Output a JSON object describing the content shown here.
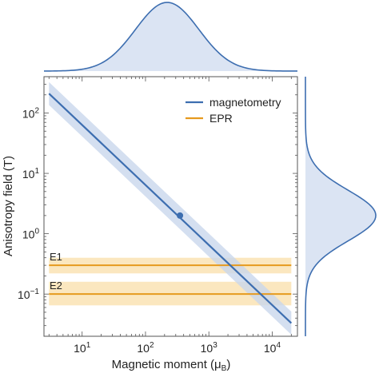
{
  "chart_data": {
    "type": "line",
    "xlabel": "Magnetic moment (μ",
    "xlabel_sub": "B",
    "xlabel_close": ")",
    "ylabel": "Anisotropy field (T)",
    "x_scale": "log",
    "y_scale": "log",
    "xlim": [
      2.5,
      25000
    ],
    "ylim": [
      0.02,
      400
    ],
    "x_ticks": [
      {
        "value": 10,
        "base": "10",
        "exp": "1"
      },
      {
        "value": 100,
        "base": "10",
        "exp": "2"
      },
      {
        "value": 1000,
        "base": "10",
        "exp": "3"
      },
      {
        "value": 10000,
        "base": "10",
        "exp": "4"
      }
    ],
    "y_ticks": [
      {
        "value": 0.1,
        "base": "10",
        "exp": "−1"
      },
      {
        "value": 1,
        "base": "10",
        "exp": "0"
      },
      {
        "value": 10,
        "base": "10",
        "exp": "1"
      },
      {
        "value": 100,
        "base": "10",
        "exp": "2"
      }
    ],
    "grid": false,
    "legend_position": "top-right",
    "series": [
      {
        "name": "magnetometry",
        "color": "#3d6eb0",
        "band_color": "#c9d7ec",
        "x": [
          3,
          20000
        ],
        "y": [
          210,
          0.033
        ],
        "band_factor": 1.55,
        "point": {
          "x": 350,
          "y": 2.0
        }
      },
      {
        "name": "EPR",
        "color": "#e69a1e",
        "band_color": "#f9dfa9",
        "x": [
          3,
          20000
        ],
        "lines": [
          {
            "label": "E1",
            "y": 0.3,
            "band": [
              0.22,
              0.4
            ]
          },
          {
            "label": "E2",
            "y": 0.1,
            "band": [
              0.065,
              0.16
            ]
          }
        ]
      }
    ],
    "marginals": {
      "top": {
        "type": "density",
        "axis": "x",
        "center": 220,
        "log_sigma": 0.5,
        "color": "#3d6eb0",
        "fill": "#dbe4f3"
      },
      "right": {
        "type": "density",
        "axis": "y",
        "center": 2.0,
        "log_sigma": 0.42,
        "color": "#3d6eb0",
        "fill": "#dbe4f3"
      }
    }
  }
}
